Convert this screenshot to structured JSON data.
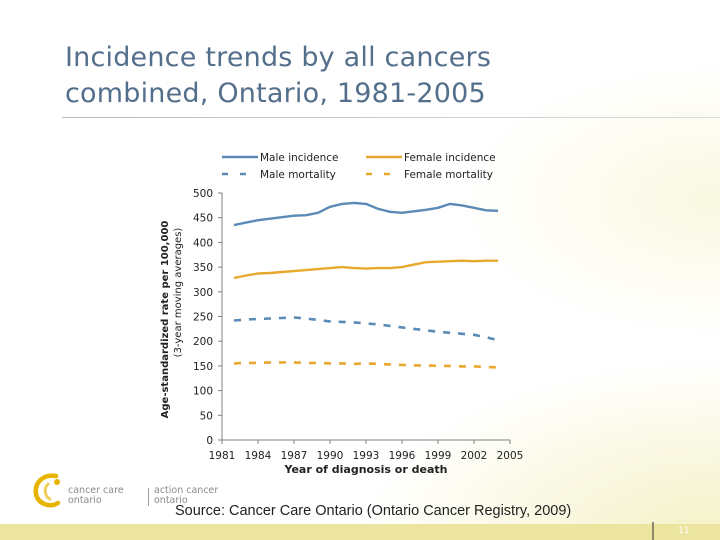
{
  "slide": {
    "title_lines": [
      "Incidence trends by all cancers",
      "combined, Ontario, 1981-2005"
    ],
    "source": "Source: Cancer Care Ontario (Ontario Cancer Registry, 2009)",
    "slide_number": "11",
    "logo": {
      "left_line1": "cancer care",
      "left_line2": "ontario",
      "right_line1": "action cancer",
      "right_line2": "ontario",
      "accent_color": "#e8b400",
      "text_color": "#8a8a8a"
    },
    "colors": {
      "title": "#546f8c",
      "footer_bar": "#ece5a0"
    }
  },
  "chart_data": {
    "type": "line",
    "title": "",
    "xlabel": "Year of diagnosis or death",
    "ylabel_line1": "Age-standardized rate per 100,000",
    "ylabel_line2": "(3-year moving averages)",
    "xlim": [
      1981,
      2005
    ],
    "ylim": [
      0,
      500
    ],
    "x_ticks": [
      1981,
      1984,
      1987,
      1990,
      1993,
      1996,
      1999,
      2002,
      2005
    ],
    "y_ticks": [
      0,
      50,
      100,
      150,
      200,
      250,
      300,
      350,
      400,
      450,
      500
    ],
    "grid": false,
    "legend_position": "top",
    "series": [
      {
        "name": "Male incidence",
        "color": "#5a8ab5",
        "dash": "solid",
        "x": [
          1982,
          1983,
          1984,
          1985,
          1986,
          1987,
          1988,
          1989,
          1990,
          1991,
          1992,
          1993,
          1994,
          1995,
          1996,
          1997,
          1998,
          1999,
          2000,
          2001,
          2002,
          2003,
          2004
        ],
        "y": [
          435,
          440,
          445,
          448,
          451,
          454,
          455,
          460,
          472,
          478,
          480,
          478,
          468,
          462,
          460,
          463,
          466,
          470,
          478,
          475,
          470,
          465,
          464
        ]
      },
      {
        "name": "Female incidence",
        "color": "#e8a82e",
        "dash": "solid",
        "x": [
          1982,
          1983,
          1984,
          1985,
          1986,
          1987,
          1988,
          1989,
          1990,
          1991,
          1992,
          1993,
          1994,
          1995,
          1996,
          1997,
          1998,
          1999,
          2000,
          2001,
          2002,
          2003,
          2004
        ],
        "y": [
          328,
          333,
          337,
          338,
          340,
          342,
          344,
          346,
          348,
          350,
          348,
          347,
          348,
          348,
          350,
          355,
          360,
          361,
          362,
          363,
          362,
          363,
          363
        ]
      },
      {
        "name": "Male mortality",
        "color": "#5a8ab5",
        "dash": "dashed",
        "x": [
          1982,
          1983,
          1984,
          1985,
          1986,
          1987,
          1988,
          1989,
          1990,
          1991,
          1992,
          1993,
          1994,
          1995,
          1996,
          1997,
          1998,
          1999,
          2000,
          2001,
          2002,
          2003,
          2004
        ],
        "y": [
          242,
          244,
          245,
          246,
          247,
          248,
          246,
          243,
          240,
          239,
          238,
          236,
          234,
          231,
          228,
          225,
          222,
          219,
          217,
          215,
          213,
          208,
          202
        ]
      },
      {
        "name": "Female mortality",
        "color": "#e8a82e",
        "dash": "dashed",
        "x": [
          1982,
          1983,
          1984,
          1985,
          1986,
          1987,
          1988,
          1989,
          1990,
          1991,
          1992,
          1993,
          1994,
          1995,
          1996,
          1997,
          1998,
          1999,
          2000,
          2001,
          2002,
          2003,
          2004
        ],
        "y": [
          155,
          156,
          156,
          157,
          157,
          157,
          156,
          156,
          155,
          155,
          154,
          155,
          154,
          153,
          152,
          151,
          151,
          150,
          150,
          149,
          149,
          148,
          147
        ]
      }
    ]
  }
}
